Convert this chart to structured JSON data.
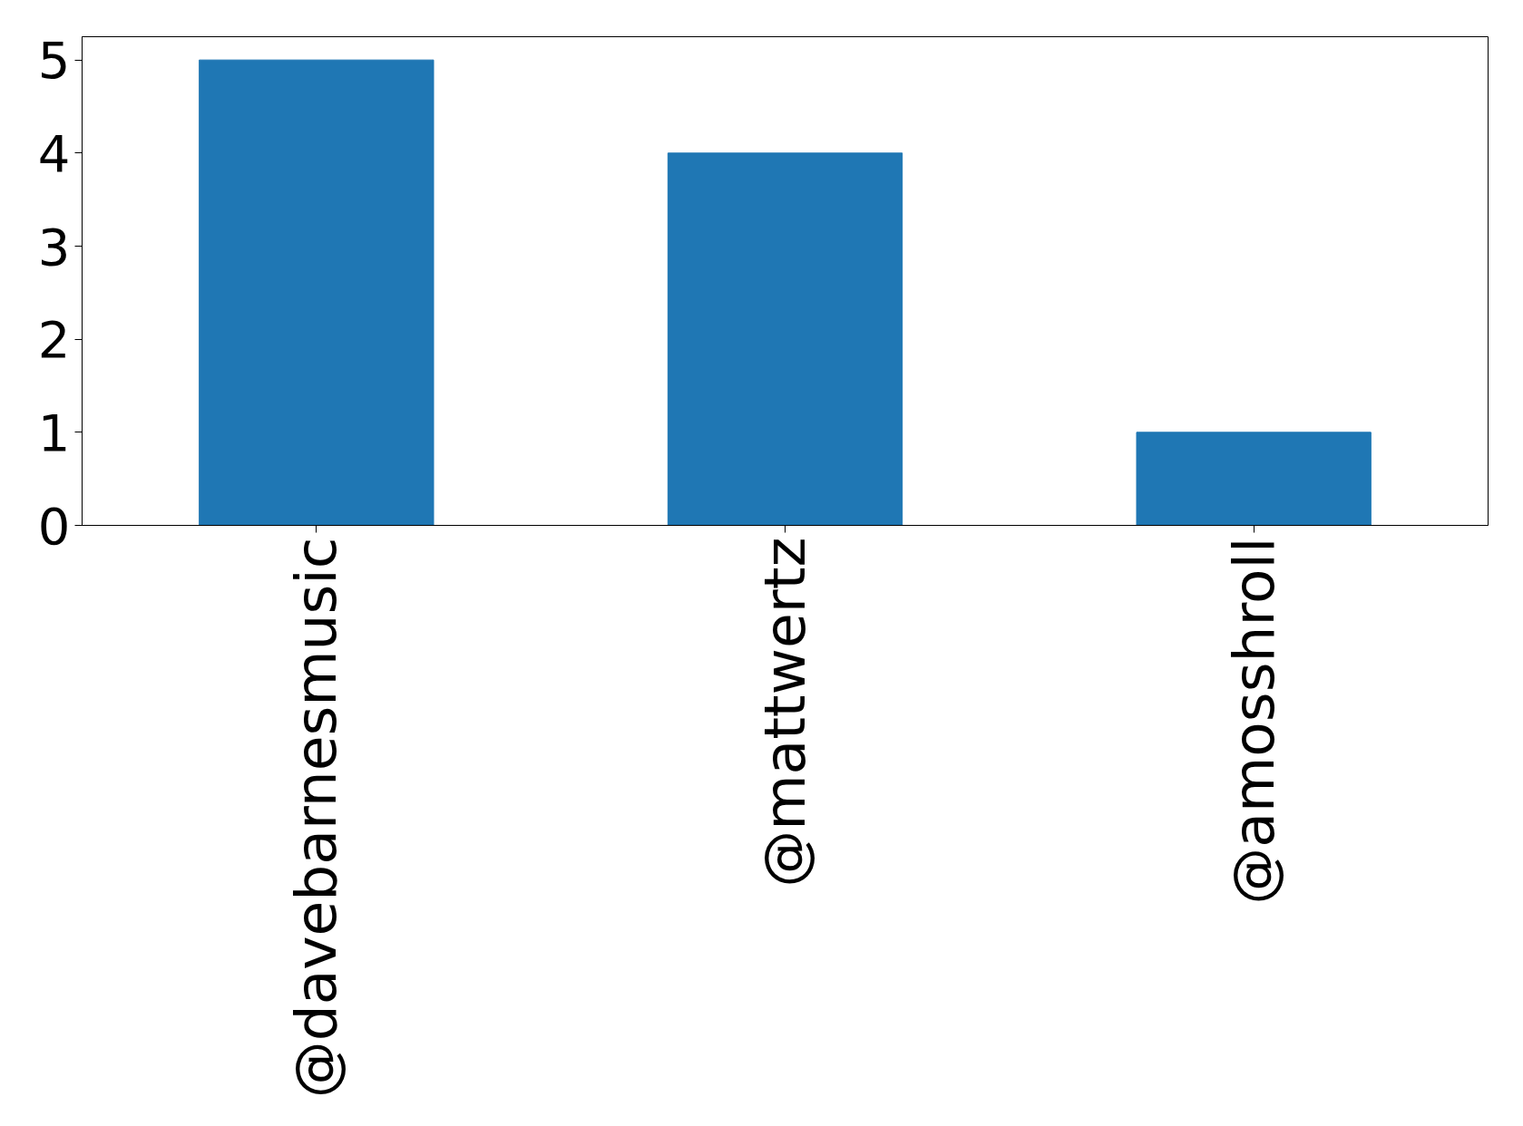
{
  "chart_data": {
    "type": "bar",
    "categories": [
      "@davebarnesmusic",
      "@mattwertz",
      "@amosshroll"
    ],
    "values": [
      5,
      4,
      1
    ],
    "color": "#1f77b4",
    "ylim": [
      0,
      5.25
    ],
    "yticks": [
      0,
      1,
      2,
      3,
      4,
      5
    ]
  }
}
